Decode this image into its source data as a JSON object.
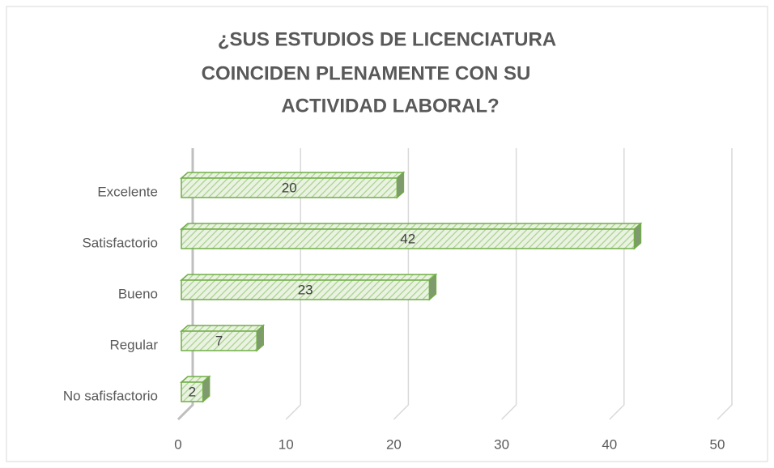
{
  "chart_data": {
    "type": "bar",
    "orientation": "horizontal",
    "title": [
      "¿SUS ESTUDIOS DE LICENCIATURA",
      "COINCIDEN PLENAMENTE CON SU",
      "ACTIVIDAD LABORAL?"
    ],
    "categories": [
      "Excelente",
      "Satisfactorio",
      "Bueno",
      "Regular",
      "No safisfactorio"
    ],
    "values": [
      20,
      42,
      23,
      7,
      2
    ],
    "color": "#70ad47",
    "xlim": [
      0,
      50
    ],
    "xticks": [
      0,
      10,
      20,
      30,
      40,
      50
    ],
    "grid": true
  }
}
